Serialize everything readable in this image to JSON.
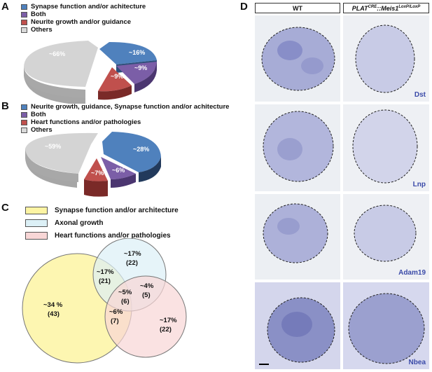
{
  "panels": {
    "A": "A",
    "B": "B",
    "C": "C",
    "D": "D"
  },
  "panel_a": {
    "legend": [
      {
        "label": "Synapse function and/or achitecture",
        "color": "#4f81bd"
      },
      {
        "label": "Both",
        "color": "#7b5ea7"
      },
      {
        "label": "Neurite growth and/or guidance",
        "color": "#c0504d"
      },
      {
        "label": "Others",
        "color": "#d9d9d9"
      }
    ],
    "pie_labels": {
      "others": "~66%",
      "synapse": "~16%",
      "both": "~9%",
      "neurite": "~9%"
    }
  },
  "panel_b": {
    "legend": [
      {
        "label": "Neurite growth, guidance, Synapse function and/or achitecture",
        "color": "#4f81bd"
      },
      {
        "label": "Both",
        "color": "#7b5ea7"
      },
      {
        "label": "Heart functions and/or pathologies",
        "color": "#c0504d"
      },
      {
        "label": "Others",
        "color": "#d9d9d9"
      }
    ],
    "pie_labels": {
      "others": "~59%",
      "neurite": "~28%",
      "both": "~6%",
      "heart": "~7%"
    }
  },
  "panel_c": {
    "legend": [
      {
        "label": "Synapse function and/or architecture",
        "color": "#fdf4a3"
      },
      {
        "label": "Axonal growth",
        "color": "#dcf0f6"
      },
      {
        "label": "Heart functions and/or pathologies",
        "color": "#f8d6d6"
      }
    ],
    "regions": {
      "synapse_only": {
        "pct": "~34 %",
        "n": "(43)"
      },
      "axonal_only": {
        "pct": "~17%",
        "n": "(22)"
      },
      "heart_only": {
        "pct": "~17%",
        "n": "(22)"
      },
      "synapse_axonal": {
        "pct": "~17%",
        "n": "(21)"
      },
      "all_three": {
        "pct": "~5%",
        "n": "(6)"
      },
      "axonal_heart": {
        "pct": "~4%",
        "n": "(5)"
      },
      "synapse_heart": {
        "pct": "~6%",
        "n": "(7)"
      }
    }
  },
  "panel_d": {
    "col_wt": "WT",
    "col_mut_main": "PLAT",
    "col_mut_sup1": "CRE",
    "col_mut_mid": "::Meis1",
    "col_mut_sup2": "LoxP/LoxP",
    "genes": [
      "Dst",
      "Lnp",
      "Adam19",
      "Nbea"
    ]
  }
}
